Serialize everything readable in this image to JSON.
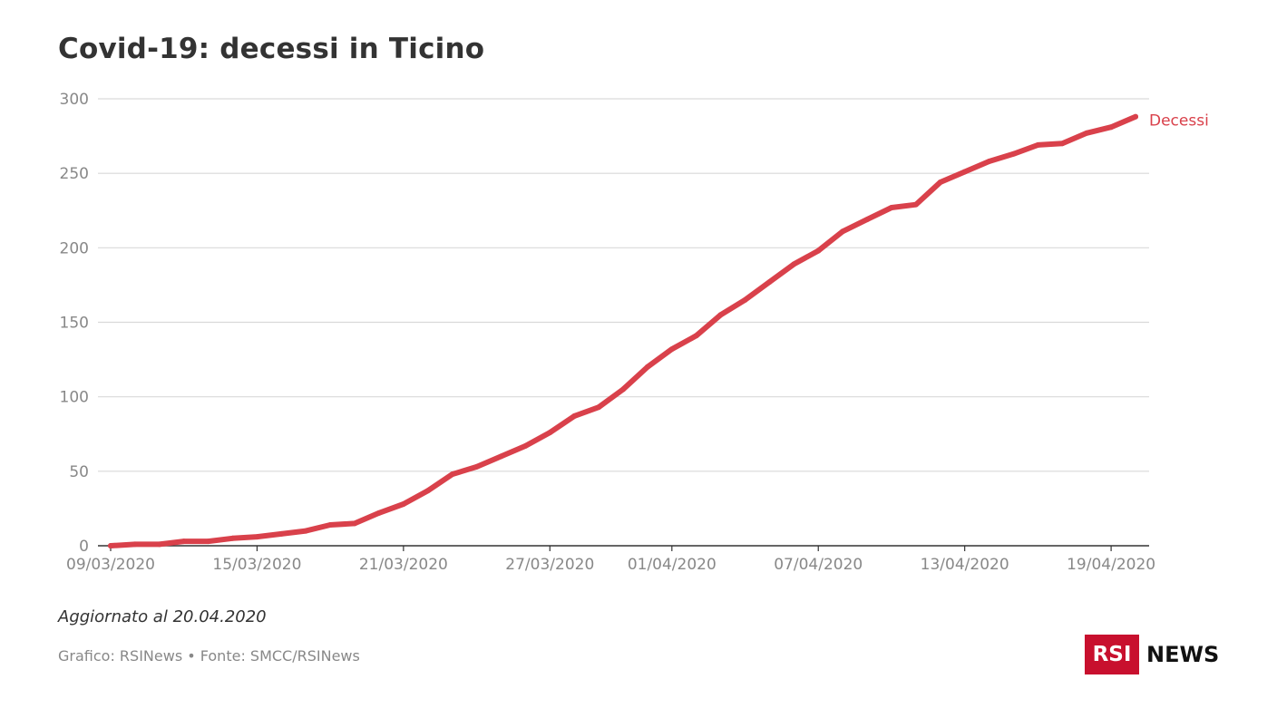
{
  "chart_data": {
    "type": "line",
    "title": "Covid-19: decessi in Ticino",
    "xlabel": "",
    "ylabel": "",
    "ylim": [
      0,
      300
    ],
    "yticks": [
      0,
      50,
      100,
      150,
      200,
      250,
      300
    ],
    "grid": true,
    "legend": "inline-end",
    "x_tick_labels": [
      "09/03/2020",
      "15/03/2020",
      "21/03/2020",
      "27/03/2020",
      "01/04/2020",
      "07/04/2020",
      "13/04/2020",
      "19/04/2020"
    ],
    "x": [
      "09/03/2020",
      "10/03/2020",
      "11/03/2020",
      "12/03/2020",
      "13/03/2020",
      "14/03/2020",
      "15/03/2020",
      "16/03/2020",
      "17/03/2020",
      "18/03/2020",
      "19/03/2020",
      "20/03/2020",
      "21/03/2020",
      "22/03/2020",
      "23/03/2020",
      "24/03/2020",
      "25/03/2020",
      "26/03/2020",
      "27/03/2020",
      "28/03/2020",
      "29/03/2020",
      "30/03/2020",
      "31/03/2020",
      "01/04/2020",
      "02/04/2020",
      "03/04/2020",
      "04/04/2020",
      "05/04/2020",
      "06/04/2020",
      "07/04/2020",
      "08/04/2020",
      "09/04/2020",
      "10/04/2020",
      "11/04/2020",
      "12/04/2020",
      "13/04/2020",
      "14/04/2020",
      "15/04/2020",
      "16/04/2020",
      "17/04/2020",
      "18/04/2020",
      "19/04/2020",
      "20/04/2020"
    ],
    "series": [
      {
        "name": "Decessi",
        "color": "#d9414b",
        "values": [
          0,
          1,
          1,
          3,
          3,
          5,
          6,
          8,
          10,
          14,
          15,
          22,
          28,
          37,
          48,
          53,
          60,
          67,
          76,
          87,
          93,
          105,
          120,
          132,
          141,
          155,
          165,
          177,
          189,
          198,
          211,
          219,
          227,
          229,
          244,
          251,
          258,
          263,
          269,
          270,
          277,
          281,
          288
        ]
      }
    ]
  },
  "note": "Aggiornato al 20.04.2020",
  "credit": "Grafico: RSINews • Fonte: SMCC/RSINews",
  "logo": {
    "box_text": "RSI",
    "word": "NEWS",
    "box_color": "#c8102e"
  },
  "colors": {
    "gridline": "#d9d9d9",
    "axis": "#333333",
    "tick_text": "#888888",
    "title": "#333333"
  }
}
